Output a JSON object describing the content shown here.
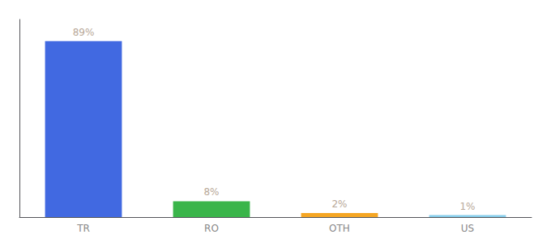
{
  "chart_data": {
    "type": "bar",
    "categories": [
      "TR",
      "RO",
      "OTH",
      "US"
    ],
    "values": [
      89,
      8,
      2,
      1
    ],
    "value_labels": [
      "89%",
      "8%",
      "2%",
      "1%"
    ],
    "colors": [
      "#4169e1",
      "#3ab54a",
      "#f5a623",
      "#87ceeb"
    ],
    "ylim": [
      0,
      100
    ],
    "grid": false,
    "tick_labels": "x"
  }
}
